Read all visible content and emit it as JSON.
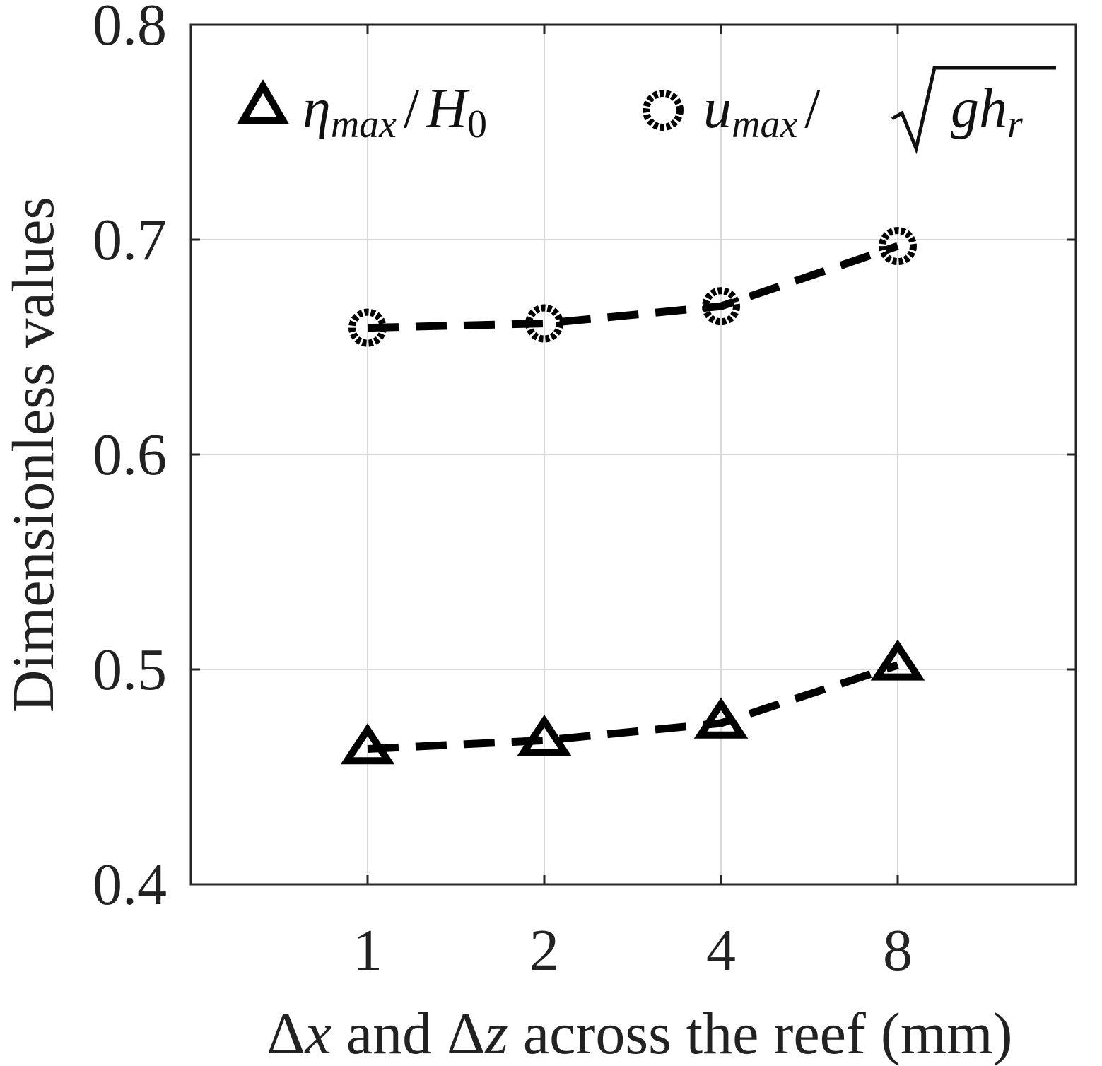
{
  "chart_data": {
    "type": "line",
    "categories": [
      "1",
      "2",
      "4",
      "8"
    ],
    "series": [
      {
        "name": "eta_max / H_0",
        "marker": "triangle",
        "values": [
          0.463,
          0.467,
          0.475,
          0.502
        ]
      },
      {
        "name": "u_max / sqrt(g h_r)",
        "marker": "circle",
        "values": [
          0.659,
          0.661,
          0.669,
          0.697
        ]
      }
    ],
    "xlabel_parts": {
      "delta1": "Δ",
      "var1": "x",
      "mid": " and ",
      "delta2": "Δ",
      "var2": "z",
      "tail": " across the reef (mm)"
    },
    "ylabel": "Dimensionless values",
    "ylim": [
      0.4,
      0.8
    ],
    "yticks": [
      "0.4",
      "0.5",
      "0.6",
      "0.7",
      "0.8"
    ],
    "grid": true,
    "legend_position": "top",
    "legend": {
      "eta": "η",
      "eta_sub": "max",
      "slash1": "/",
      "H": "H",
      "H_sub": "0",
      "u": "u",
      "u_sub": "max",
      "slash2": "/",
      "g": "g",
      "h": "h",
      "h_sub": "r"
    },
    "line_color": "#000000",
    "grid_color": "#d9d9d9",
    "axis_color": "#262626"
  }
}
